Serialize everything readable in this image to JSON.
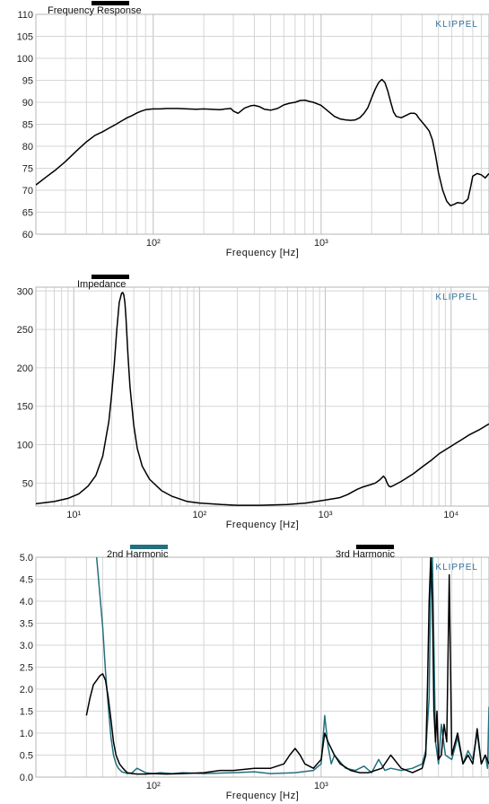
{
  "brand": "KLIPPEL",
  "colors": {
    "black": "#000000",
    "teal": "#23707f",
    "grid": "#d6d6d6",
    "frame": "#b5b5b5"
  },
  "chart_data": [
    {
      "type": "line",
      "title": "Frequency Response",
      "xlabel": "Frequency  [Hz]",
      "ylabel": "",
      "xscale": "log",
      "xlim": [
        20,
        10000
      ],
      "ylim": [
        60,
        110
      ],
      "yticks": [
        60,
        65,
        70,
        75,
        80,
        85,
        90,
        95,
        100,
        105,
        110
      ],
      "yticklabels": [
        "60",
        "65",
        "70",
        "75",
        "80",
        "85",
        "90",
        "95",
        "100",
        "105",
        "110"
      ],
      "xticks": [
        100,
        1000
      ],
      "xticklabels": [
        "10²",
        "10³"
      ],
      "grid": true,
      "legend": "top",
      "series": [
        {
          "name": "Frequency Response",
          "color": "#000000",
          "x": [
            20,
            23,
            26,
            30,
            35,
            40,
            45,
            50,
            55,
            60,
            65,
            70,
            75,
            80,
            85,
            90,
            95,
            100,
            110,
            120,
            140,
            160,
            180,
            200,
            220,
            250,
            270,
            290,
            300,
            320,
            350,
            380,
            400,
            430,
            460,
            500,
            550,
            600,
            650,
            700,
            750,
            800,
            850,
            900,
            1000,
            1100,
            1200,
            1300,
            1400,
            1500,
            1600,
            1700,
            1800,
            1900,
            2000,
            2100,
            2200,
            2300,
            2400,
            2500,
            2600,
            2700,
            2800,
            3000,
            3200,
            3400,
            3600,
            3700,
            3800,
            4000,
            4200,
            4400,
            4600,
            4800,
            5000,
            5300,
            5600,
            5900,
            6200,
            6500,
            7000,
            7500,
            7800,
            8000,
            8500,
            9000,
            9500,
            10000
          ],
          "y": [
            71.2,
            73.0,
            74.5,
            76.5,
            79.0,
            81.0,
            82.5,
            83.3,
            84.2,
            85.0,
            85.8,
            86.5,
            87.0,
            87.6,
            88.0,
            88.3,
            88.4,
            88.5,
            88.5,
            88.6,
            88.6,
            88.5,
            88.4,
            88.5,
            88.4,
            88.3,
            88.5,
            88.6,
            88.0,
            87.5,
            88.7,
            89.2,
            89.3,
            89.0,
            88.4,
            88.2,
            88.6,
            89.4,
            89.8,
            90.0,
            90.4,
            90.5,
            90.2,
            90.0,
            89.3,
            88.0,
            86.8,
            86.2,
            86.0,
            85.9,
            86.0,
            86.5,
            87.5,
            88.8,
            91.0,
            93.0,
            94.5,
            95.2,
            94.5,
            92.5,
            90.0,
            87.8,
            86.8,
            86.5,
            87.0,
            87.5,
            87.5,
            87.2,
            86.5,
            85.5,
            84.5,
            83.5,
            81.5,
            78.0,
            74.0,
            70.0,
            67.5,
            66.5,
            66.8,
            67.2,
            67.0,
            68.0,
            71.0,
            73.2,
            73.8,
            73.5,
            72.8,
            73.8
          ]
        }
      ]
    },
    {
      "type": "line",
      "title": "Impedance",
      "xlabel": "Frequency  [Hz]",
      "ylabel": "",
      "xscale": "log",
      "xlim": [
        5,
        20000
      ],
      "ylim": [
        20,
        305
      ],
      "yticks": [
        50,
        100,
        150,
        200,
        250,
        300
      ],
      "yticklabels": [
        "50",
        "100",
        "150",
        "200",
        "250",
        "300"
      ],
      "xticks": [
        10,
        100,
        1000,
        10000
      ],
      "xticklabels": [
        "10¹",
        "10²",
        "10³",
        "10⁴"
      ],
      "grid": true,
      "legend": "top",
      "series": [
        {
          "name": "Impedance",
          "color": "#000000",
          "x": [
            5,
            7,
            9,
            11,
            13,
            15,
            17,
            19,
            20,
            21,
            22,
            23,
            24,
            24.5,
            25,
            25.5,
            26,
            27,
            28,
            30,
            32,
            35,
            40,
            50,
            60,
            80,
            100,
            150,
            200,
            300,
            500,
            700,
            1000,
            1300,
            1500,
            1800,
            2000,
            2300,
            2500,
            2700,
            2900,
            3000,
            3100,
            3200,
            3300,
            3500,
            4000,
            5000,
            6000,
            7000,
            8000,
            10000,
            12000,
            14000,
            17000,
            20000
          ],
          "y": [
            23,
            26,
            30,
            36,
            46,
            60,
            85,
            130,
            165,
            205,
            250,
            285,
            297,
            298,
            295,
            285,
            265,
            215,
            175,
            125,
            95,
            72,
            55,
            40,
            33,
            26,
            24,
            22,
            21,
            21,
            22,
            24,
            28,
            31,
            35,
            42,
            45,
            48,
            50,
            54,
            59,
            56,
            50,
            46,
            45,
            47,
            52,
            62,
            72,
            80,
            88,
            98,
            106,
            113,
            120,
            127
          ]
        }
      ]
    },
    {
      "type": "line",
      "title": "",
      "xlabel": "Frequency  [Hz]",
      "ylabel": "",
      "xscale": "log",
      "xlim": [
        20,
        10000
      ],
      "ylim": [
        0,
        5
      ],
      "yticks": [
        0,
        0.5,
        1,
        1.5,
        2,
        2.5,
        3,
        3.5,
        4,
        4.5,
        5
      ],
      "yticklabels": [
        "0.0",
        "0.5",
        "1.0",
        "1.5",
        "2.0",
        "2.5",
        "3.0",
        "3.5",
        "4.0",
        "4.5",
        "5.0"
      ],
      "xticks": [
        100,
        1000
      ],
      "xticklabels": [
        "10²",
        "10³"
      ],
      "grid": true,
      "legend": "top",
      "series": [
        {
          "name": "2nd Harmonic",
          "color": "#23707f",
          "x": [
            46,
            48,
            50,
            52,
            54,
            56,
            58,
            60,
            62,
            65,
            68,
            70,
            75,
            80,
            90,
            100,
            110,
            130,
            150,
            200,
            300,
            400,
            500,
            700,
            900,
            1000,
            1050,
            1100,
            1150,
            1200,
            1400,
            1600,
            1800,
            2000,
            2200,
            2400,
            2600,
            3000,
            3500,
            4000,
            4200,
            4400,
            4500,
            4600,
            4700,
            4800,
            5000,
            5200,
            5500,
            6000,
            6500,
            7000,
            7500,
            8000,
            8500,
            9000,
            9500,
            9800,
            10000
          ],
          "y": [
            5.0,
            4.2,
            3.4,
            2.4,
            1.6,
            0.9,
            0.5,
            0.3,
            0.2,
            0.12,
            0.1,
            0.08,
            0.1,
            0.2,
            0.1,
            0.08,
            0.1,
            0.08,
            0.1,
            0.08,
            0.1,
            0.12,
            0.08,
            0.1,
            0.15,
            0.3,
            1.4,
            0.7,
            0.3,
            0.5,
            0.2,
            0.15,
            0.25,
            0.1,
            0.4,
            0.15,
            0.2,
            0.15,
            0.2,
            0.3,
            0.6,
            1.8,
            4.5,
            5.0,
            3.0,
            0.8,
            0.3,
            1.2,
            0.5,
            0.4,
            0.9,
            0.3,
            0.6,
            0.4,
            1.0,
            0.3,
            0.5,
            0.2,
            1.6
          ]
        },
        {
          "name": "3rd Harmonic",
          "color": "#000000",
          "x": [
            40,
            42,
            44,
            46,
            48,
            50,
            52,
            54,
            56,
            58,
            60,
            63,
            66,
            70,
            75,
            80,
            90,
            100,
            120,
            150,
            200,
            250,
            300,
            400,
            500,
            600,
            650,
            700,
            750,
            800,
            900,
            1000,
            1050,
            1100,
            1200,
            1300,
            1500,
            1700,
            1900,
            2000,
            2100,
            2300,
            2600,
            3000,
            3500,
            4000,
            4200,
            4300,
            4400,
            4500,
            4600,
            4700,
            4800,
            4900,
            5000,
            5200,
            5400,
            5600,
            5800,
            6000,
            6500,
            7000,
            7500,
            8000,
            8500,
            9000,
            9500,
            10000
          ],
          "y": [
            1.4,
            1.8,
            2.1,
            2.2,
            2.3,
            2.35,
            2.2,
            1.8,
            1.3,
            0.8,
            0.5,
            0.3,
            0.2,
            0.1,
            0.08,
            0.07,
            0.07,
            0.08,
            0.07,
            0.08,
            0.1,
            0.15,
            0.15,
            0.2,
            0.2,
            0.3,
            0.5,
            0.65,
            0.5,
            0.3,
            0.2,
            0.4,
            1.0,
            0.8,
            0.5,
            0.3,
            0.15,
            0.1,
            0.1,
            0.12,
            0.15,
            0.2,
            0.5,
            0.2,
            0.1,
            0.2,
            0.5,
            2.0,
            4.0,
            5.0,
            4.0,
            1.5,
            0.8,
            1.5,
            0.4,
            0.5,
            1.2,
            0.8,
            4.6,
            0.5,
            1.0,
            0.3,
            0.5,
            0.3,
            1.1,
            0.3,
            0.5,
            0.3
          ]
        }
      ]
    }
  ]
}
